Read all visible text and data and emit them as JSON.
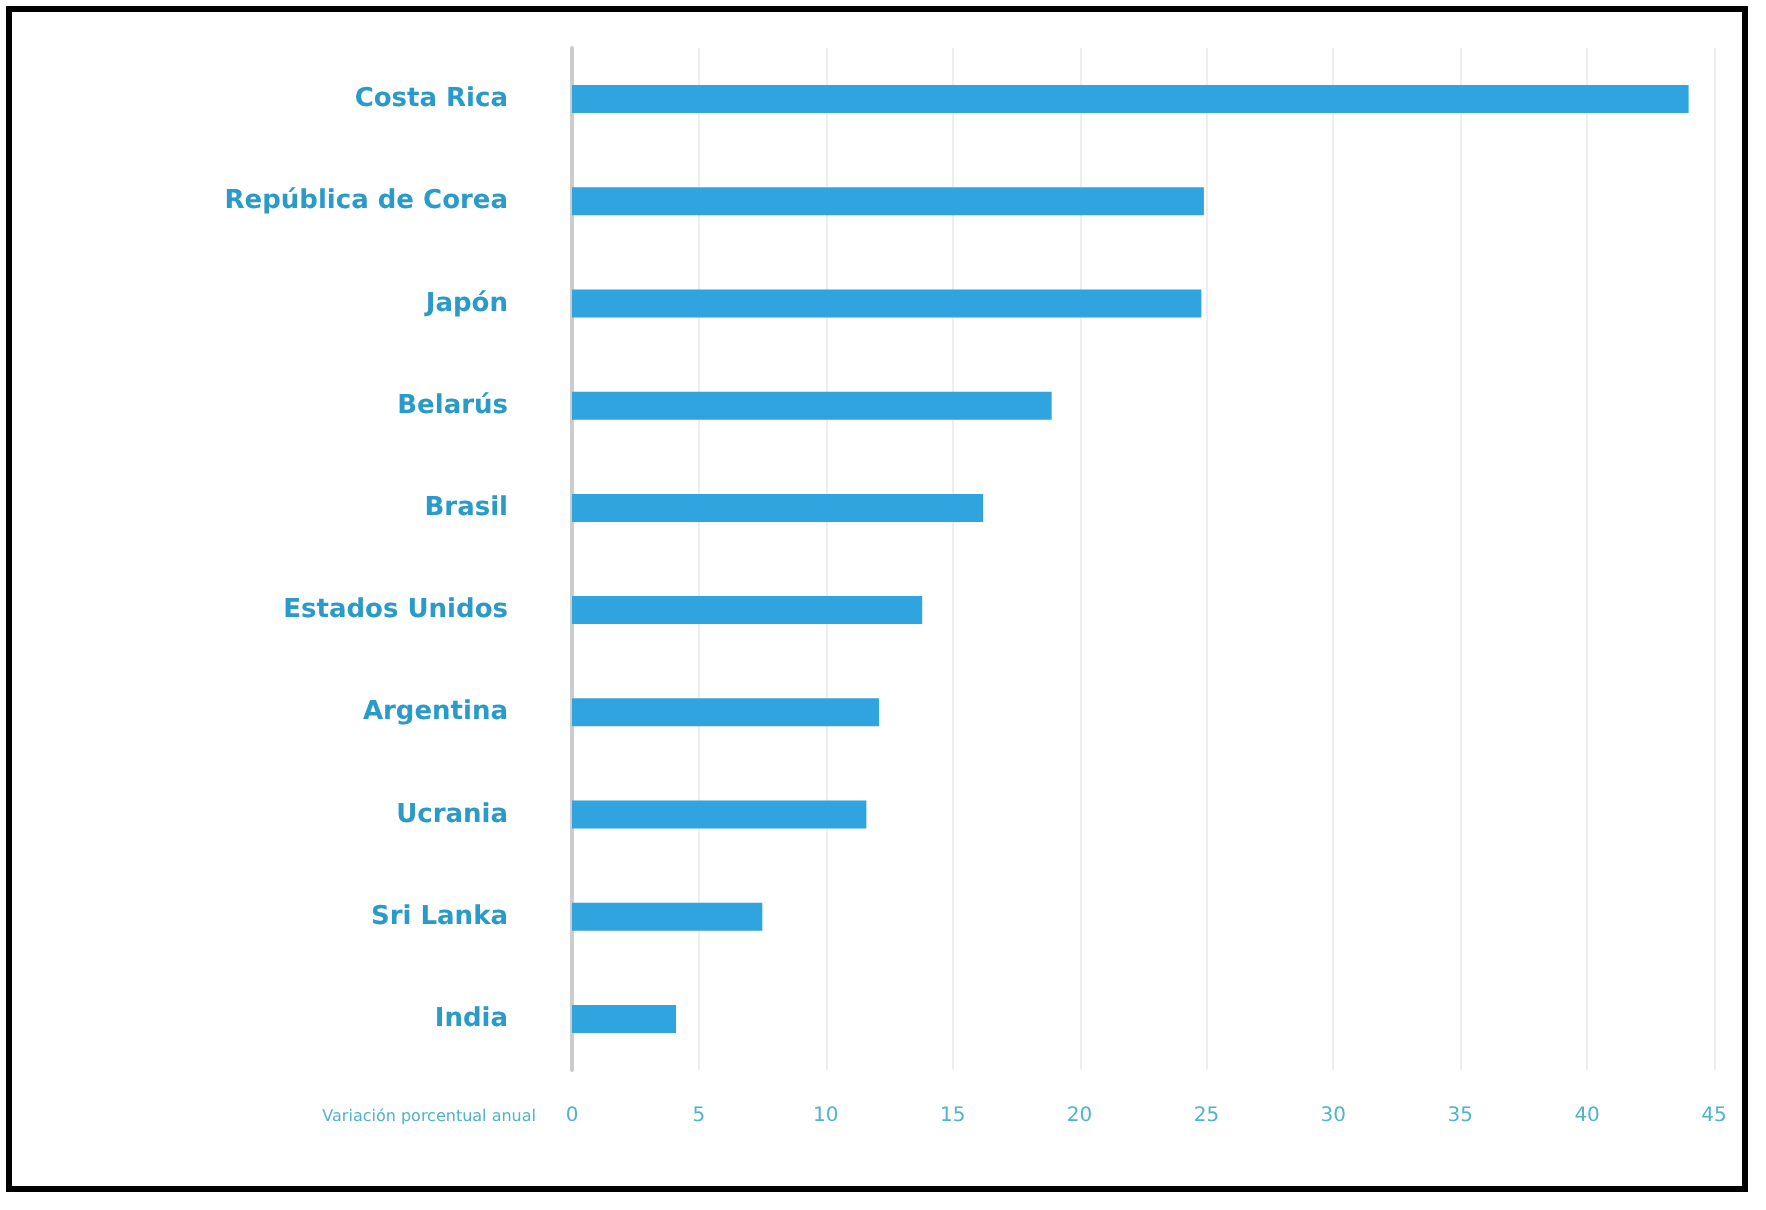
{
  "chart_data": {
    "type": "bar",
    "orientation": "horizontal",
    "xlabel": "Variación porcentual anual",
    "categories": [
      "Costa Rica",
      "República de Corea",
      "Japón",
      "Belarús",
      "Brasil",
      "Estados Unidos",
      "Argentina",
      "Ucrania",
      "Sri Lanka",
      "India"
    ],
    "values": [
      44.0,
      24.9,
      24.8,
      18.9,
      16.2,
      13.8,
      12.1,
      11.6,
      7.5,
      4.1
    ],
    "color": "#2fa4de",
    "xlim": [
      0,
      45
    ],
    "xticks": [
      0,
      5,
      10,
      15,
      20,
      25,
      30,
      35,
      40,
      45
    ],
    "grid": "x"
  }
}
